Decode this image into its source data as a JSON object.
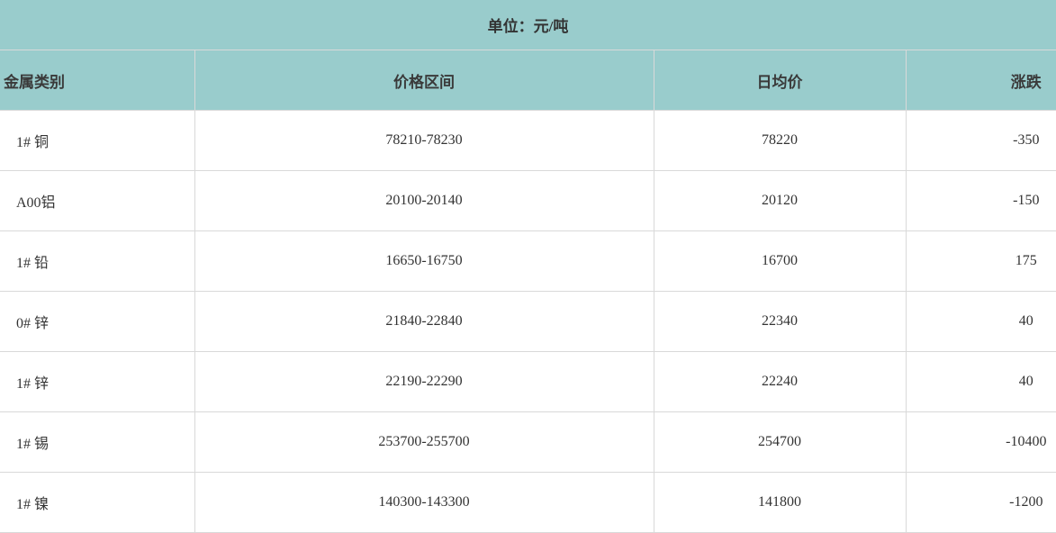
{
  "unit_label": "单位：元/吨",
  "columns": [
    "金属类别",
    "价格区间",
    "日均价",
    "涨跌"
  ],
  "rows": [
    [
      "1# 铜",
      "78210-78230",
      "78220",
      "-350"
    ],
    [
      "A00铝",
      "20100-20140",
      "20120",
      "-150"
    ],
    [
      "1# 铅",
      "16650-16750",
      "16700",
      "175"
    ],
    [
      "0# 锌",
      "21840-22840",
      "22340",
      "40"
    ],
    [
      "1# 锌",
      "22190-22290",
      "22240",
      "40"
    ],
    [
      "1# 锡",
      "253700-255700",
      "254700",
      "-10400"
    ],
    [
      "1# 镍",
      "140300-143300",
      "141800",
      "-1200"
    ]
  ],
  "colors": {
    "header_bg": "#99cccc",
    "border": "#d9d9d9"
  }
}
